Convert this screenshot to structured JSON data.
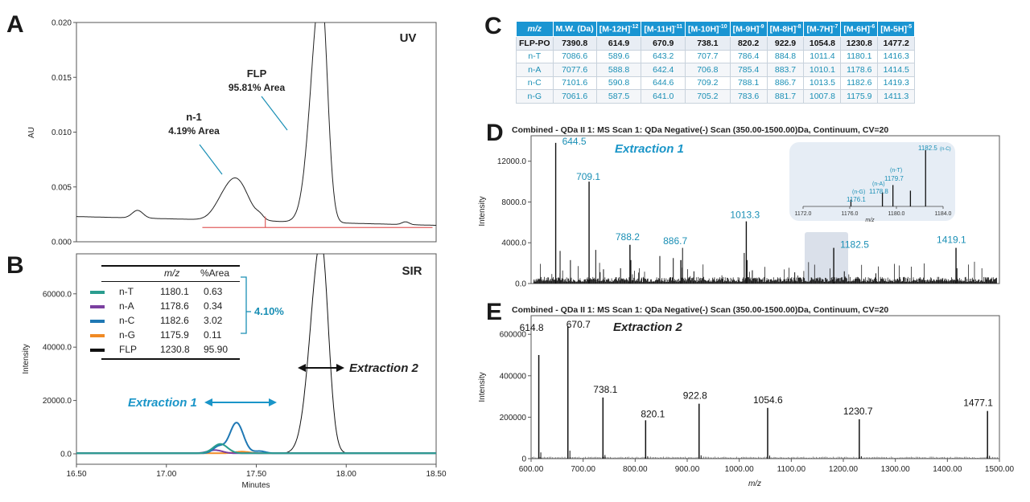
{
  "panels": {
    "A": {
      "letter": "A",
      "tag": "UV",
      "ylabel": "AU",
      "yticks": [
        "0.020",
        "0.015",
        "0.010",
        "0.005",
        "0.000"
      ],
      "peak_main_name": "FLP",
      "peak_main_area": "95.81% Area",
      "peak_minor_name": "n-1",
      "peak_minor_area": "4.19% Area"
    },
    "B": {
      "letter": "B",
      "tag": "SIR",
      "ylabel": "Intensity",
      "xlabel": "Minutes",
      "yticks": [
        "60000.0",
        "40000.0",
        "20000.0",
        "0.0"
      ],
      "xticks": [
        "16.50",
        "17.00",
        "17.50",
        "18.00",
        "18.50"
      ],
      "extraction1": "Extraction 1",
      "extraction2": "Extraction 2",
      "bracket_total": "4.10%"
    },
    "C": {
      "letter": "C"
    },
    "D": {
      "letter": "D",
      "title": "Combined - QDa II 1: MS Scan 1: QDa Negative(-) Scan (350.00-1500.00)Da, Continuum, CV=20",
      "extraction": "Extraction 1",
      "ylabel": "Intensity",
      "yticks": [
        "12000.0",
        "8000.0",
        "4000.0",
        "0.0"
      ],
      "inset_xticks": [
        "1172.0",
        "1176.0",
        "1180.0",
        "1184.0"
      ],
      "inset_xlabel": "m/z"
    },
    "E": {
      "letter": "E",
      "title": "Combined - QDa II 1: MS Scan 1: QDa Negative(-) Scan (350.00-1500.00)Da, Continuum, CV=20",
      "extraction": "Extraction 2",
      "ylabel": "Intensity",
      "xlabel": "m/z",
      "yticks": [
        "600000",
        "400000",
        "200000",
        "0"
      ],
      "xticks": [
        "600.00",
        "700.00",
        "800.00",
        "900.00",
        "1000.00",
        "1100.00",
        "1200.00",
        "1300.00",
        "1400.00",
        "1500.00"
      ]
    }
  },
  "legend_B": {
    "header": {
      "mz": "m/z",
      "area": "%Area"
    },
    "rows": [
      {
        "name": "n-T",
        "mz": "1180.1",
        "area": "0.63",
        "color": "#2a9d8f"
      },
      {
        "name": "n-A",
        "mz": "1178.6",
        "area": "0.34",
        "color": "#7b3fa0"
      },
      {
        "name": "n-C",
        "mz": "1182.6",
        "area": "3.02",
        "color": "#1f78b4"
      },
      {
        "name": "n-G",
        "mz": "1175.9",
        "area": "0.11",
        "color": "#f08a24"
      },
      {
        "name": "FLP",
        "mz": "1230.8",
        "area": "95.90",
        "color": "#111111"
      }
    ]
  },
  "table_C": {
    "headers": [
      {
        "t": "m/z",
        "s": ""
      },
      {
        "t": "M.W. (Da)",
        "s": ""
      },
      {
        "t": "[M-12H]",
        "s": "-12"
      },
      {
        "t": "[M-11H]",
        "s": "-11"
      },
      {
        "t": "[M-10H]",
        "s": "-10"
      },
      {
        "t": "[M-9H]",
        "s": "-9"
      },
      {
        "t": "[M-8H]",
        "s": "-8"
      },
      {
        "t": "[M-7H]",
        "s": "-7"
      },
      {
        "t": "[M-6H]",
        "s": "-6"
      },
      {
        "t": "[M-5H]",
        "s": "-5"
      }
    ],
    "rows": [
      [
        "FLP-PO",
        "7390.8",
        "614.9",
        "670.9",
        "738.1",
        "820.2",
        "922.9",
        "1054.8",
        "1230.8",
        "1477.2"
      ],
      [
        "n-T",
        "7086.6",
        "589.6",
        "643.2",
        "707.7",
        "786.4",
        "884.8",
        "1011.4",
        "1180.1",
        "1416.3"
      ],
      [
        "n-A",
        "7077.6",
        "588.8",
        "642.4",
        "706.8",
        "785.4",
        "883.7",
        "1010.1",
        "1178.6",
        "1414.5"
      ],
      [
        "n-C",
        "7101.6",
        "590.8",
        "644.6",
        "709.2",
        "788.1",
        "886.7",
        "1013.5",
        "1182.6",
        "1419.3"
      ],
      [
        "n-G",
        "7061.6",
        "587.5",
        "641.0",
        "705.2",
        "783.6",
        "881.7",
        "1007.8",
        "1175.9",
        "1411.3"
      ]
    ]
  },
  "chart_data": [
    {
      "id": "A",
      "type": "line",
      "title": "UV",
      "xlabel": "",
      "ylabel": "AU",
      "xlim": [
        16.5,
        18.5
      ],
      "ylim": [
        0,
        0.02
      ],
      "peaks": [
        {
          "name": "n-1",
          "rt": 17.39,
          "height": 0.0055,
          "area_pct": 4.19
        },
        {
          "name": "FLP",
          "rt": 17.86,
          "height": 0.0215,
          "area_pct": 95.81
        }
      ]
    },
    {
      "id": "B",
      "type": "line",
      "title": "SIR",
      "xlabel": "Minutes",
      "ylabel": "Intensity",
      "xlim": [
        16.5,
        18.5
      ],
      "ylim": [
        0,
        75000
      ],
      "series": [
        {
          "name": "n-T",
          "peak_rt": 17.3,
          "peak_height": 3500
        },
        {
          "name": "n-A",
          "peak_rt": 17.27,
          "peak_height": 1200
        },
        {
          "name": "n-C",
          "peak_rt": 17.39,
          "peak_height": 11500
        },
        {
          "name": "n-G",
          "peak_rt": 17.42,
          "peak_height": 600
        },
        {
          "name": "FLP",
          "peak_rt": 17.86,
          "peak_height": 80000
        }
      ]
    },
    {
      "id": "D",
      "type": "bar",
      "title": "Extraction 1",
      "xlabel": "m/z",
      "ylabel": "Intensity",
      "xlim": [
        600,
        1500
      ],
      "ylim": [
        0,
        14500
      ],
      "labeled_peaks": [
        {
          "mz": 644.5,
          "intensity": 13800
        },
        {
          "mz": 709.1,
          "intensity": 10000
        },
        {
          "mz": 788.2,
          "intensity": 3800
        },
        {
          "mz": 886.7,
          "intensity": 2300
        },
        {
          "mz": 1013.3,
          "intensity": 6100
        },
        {
          "mz": 1182.5,
          "intensity": 3500
        },
        {
          "mz": 1419.1,
          "intensity": 3500
        }
      ],
      "inset": {
        "xlim": [
          1172,
          1184
        ],
        "peaks": [
          {
            "mz": 1176.1,
            "label": "(n-G)",
            "rel": 0.12
          },
          {
            "mz": 1178.8,
            "label": "(n-A)",
            "rel": 0.25
          },
          {
            "mz": 1179.7,
            "label": "(n-T)",
            "rel": 0.38
          },
          {
            "mz": 1181.2,
            "label": "",
            "rel": 0.28
          },
          {
            "mz": 1182.5,
            "label": "(n-C)",
            "rel": 1.0
          }
        ]
      }
    },
    {
      "id": "E",
      "type": "bar",
      "title": "Extraction 2",
      "xlabel": "m/z",
      "ylabel": "Intensity",
      "xlim": [
        600,
        1500
      ],
      "ylim": [
        0,
        690000
      ],
      "labeled_peaks": [
        {
          "mz": 614.8,
          "intensity": 500000
        },
        {
          "mz": 670.7,
          "intensity": 640000
        },
        {
          "mz": 738.1,
          "intensity": 295000
        },
        {
          "mz": 820.1,
          "intensity": 185000
        },
        {
          "mz": 922.8,
          "intensity": 265000
        },
        {
          "mz": 1054.6,
          "intensity": 245000
        },
        {
          "mz": 1230.7,
          "intensity": 190000
        },
        {
          "mz": 1477.1,
          "intensity": 230000
        }
      ]
    }
  ]
}
